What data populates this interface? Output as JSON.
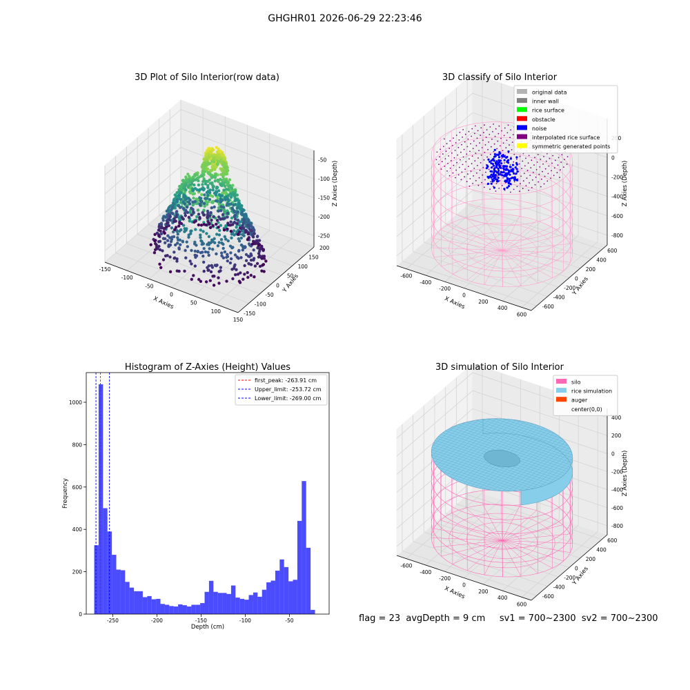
{
  "figure": {
    "suptitle": "GHGHR01 2026-06-29 22:23:46"
  },
  "chart_data": [
    {
      "type": "scatter",
      "projection": "3d",
      "title": "3D Plot of Silo Interior(row data)",
      "xlabel": "X Axies",
      "ylabel": "Y Axies",
      "zlabel": "Z Axies (Depth)",
      "xlim": [
        -150,
        150
      ],
      "ylim": [
        -150,
        200
      ],
      "zlim": [
        -280,
        -25
      ],
      "xticks": [
        -150,
        -100,
        -50,
        0,
        50,
        100,
        150
      ],
      "yticks": [
        -150,
        -100,
        -50,
        0,
        50,
        100,
        150,
        200
      ],
      "zticks": [
        -250,
        -200,
        -150,
        -100,
        -50
      ],
      "colormap": "viridis",
      "grid": true
    },
    {
      "type": "scatter",
      "projection": "3d",
      "title": "3D classify of Silo Interior",
      "xlabel": "X Axies",
      "ylabel": "Y Axies",
      "zlabel": "Z Axies (Depth)",
      "xlim": [
        -700,
        700
      ],
      "ylim": [
        -700,
        700
      ],
      "zlim": [
        -900,
        400
      ],
      "xticks": [
        -600,
        -400,
        -200,
        0,
        200,
        400,
        600
      ],
      "yticks": [
        -600,
        -400,
        -200,
        0,
        200,
        400,
        600
      ],
      "zticks": [
        -800,
        -600,
        -400,
        -200,
        0,
        200
      ],
      "legend": [
        {
          "label": "original data",
          "color": "#b3b3b3"
        },
        {
          "label": "inner wall",
          "color": "#808080"
        },
        {
          "label": "rice surface",
          "color": "#00ff00"
        },
        {
          "label": "obstacle",
          "color": "#ff0000"
        },
        {
          "label": "noise",
          "color": "#0000ff"
        },
        {
          "label": "interpolated rice surface",
          "color": "#800080"
        },
        {
          "label": "symmetric generated points",
          "color": "#ffff00"
        }
      ],
      "legend_placement": "upper right",
      "grid": true
    },
    {
      "type": "bar",
      "title": "Histogram of Z-Axies (Height) Values",
      "xlabel": "Depth (cm)",
      "ylabel": "Frequency",
      "xlim": [
        -280,
        -5
      ],
      "ylim": [
        0,
        1140
      ],
      "xticks": [
        -250,
        -200,
        -150,
        -100,
        -50
      ],
      "yticks": [
        0,
        200,
        400,
        600,
        800,
        1000
      ],
      "bin_start": -271,
      "bin_width": 5,
      "values": [
        325,
        1085,
        500,
        390,
        280,
        210,
        207,
        152,
        125,
        108,
        108,
        80,
        85,
        70,
        72,
        48,
        44,
        38,
        36,
        46,
        42,
        36,
        44,
        44,
        52,
        105,
        157,
        105,
        100,
        100,
        95,
        135,
        78,
        72,
        68,
        90,
        102,
        82,
        115,
        150,
        158,
        205,
        258,
        222,
        155,
        162,
        440,
        628,
        313,
        20
      ],
      "color": "#0000ff",
      "vlines": [
        {
          "label": "first_peak: -263.91 cm",
          "x": -263.91,
          "color": "#ff0000"
        },
        {
          "label": "Upper_limit: -253.72 cm",
          "x": -253.72,
          "color": "#0000ff"
        },
        {
          "label": "Lower_limit: -269.00 cm",
          "x": -269.0,
          "color": "#0000ff"
        }
      ],
      "legend_placement": "upper right"
    },
    {
      "type": "surface",
      "projection": "3d",
      "title": "3D simulation of Silo Interior",
      "xlabel": "X Axies",
      "ylabel": "Y Axies",
      "zlabel": "Z Axies (Depth)",
      "xlim": [
        -700,
        700
      ],
      "ylim": [
        -700,
        700
      ],
      "zlim": [
        -900,
        500
      ],
      "xticks": [
        -600,
        -400,
        -200,
        0,
        200,
        400,
        600
      ],
      "yticks": [
        -600,
        -400,
        -200,
        0,
        200,
        400,
        600
      ],
      "zticks": [
        -800,
        -600,
        -400,
        -200,
        0,
        200,
        400
      ],
      "legend": [
        {
          "label": "silo",
          "color": "#ff69b4"
        },
        {
          "label": "rice simulation",
          "color": "#87ceeb"
        },
        {
          "label": "auger",
          "color": "#ff4500"
        },
        {
          "label": "center(0,0)",
          "color": "#ffffff"
        }
      ],
      "legend_placement": "upper right",
      "grid": true
    }
  ],
  "stats": {
    "text": "flag = 23  avgDepth = 9 cm     sv1 = 700~2300  sv2 = 700~2300"
  }
}
